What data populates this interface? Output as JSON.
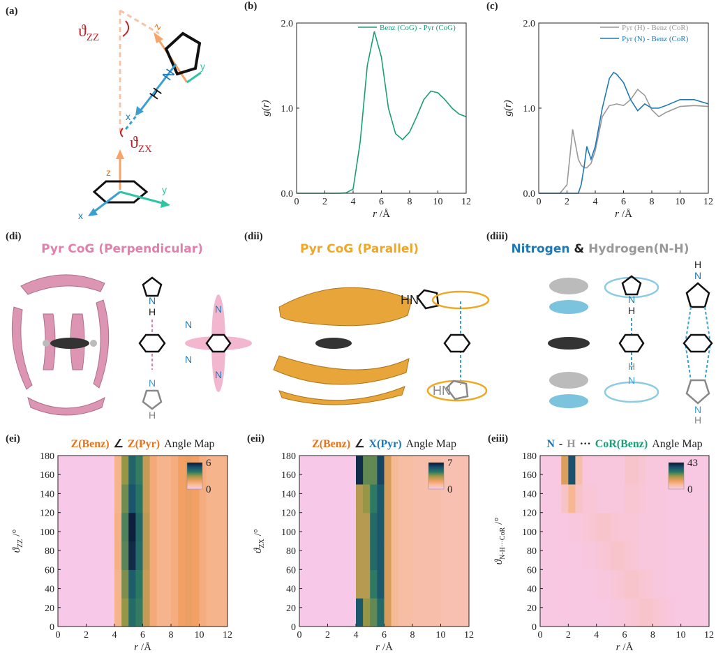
{
  "chart_data": [
    {
      "type": "line",
      "panel_label": "(b)",
      "x_label_var": "r",
      "x_label_unit": "/Å",
      "y_label": "g(r)",
      "legend": "upper right",
      "x": [
        0,
        1,
        2,
        3,
        3.5,
        4,
        4.5,
        5,
        5.5,
        6,
        6.5,
        7,
        7.5,
        8,
        8.5,
        9,
        9.5,
        10,
        10.5,
        11,
        11.5,
        12
      ],
      "series": [
        {
          "name": "Benz (CoG) - Pyr (CoG)",
          "color": "#1a9e77",
          "values": [
            0,
            0,
            0,
            0,
            0.005,
            0.05,
            0.6,
            1.5,
            1.9,
            1.6,
            1.0,
            0.7,
            0.63,
            0.72,
            0.9,
            1.1,
            1.2,
            1.18,
            1.1,
            1.0,
            0.93,
            0.9
          ]
        }
      ],
      "xlim": [
        0,
        12
      ],
      "xticks": [
        0,
        2,
        4,
        6,
        8,
        10,
        12
      ],
      "ylim": [
        0,
        2
      ],
      "yticks": [
        {
          "value": 0,
          "label": "0.0"
        },
        {
          "value": 1,
          "label": "1.0"
        },
        {
          "value": 2,
          "label": "2.0"
        }
      ]
    },
    {
      "type": "line",
      "panel_label": "(c)",
      "x_label_var": "r",
      "x_label_unit": "/Å",
      "y_label": "g(r)",
      "legend": "upper right",
      "x": [
        0,
        1,
        1.5,
        2,
        2.4,
        2.8,
        3,
        3.2,
        3.4,
        3.7,
        4,
        4.5,
        5,
        5.3,
        5.5,
        6,
        6.5,
        7,
        7.5,
        8,
        8.5,
        9,
        10,
        11,
        12
      ],
      "series": [
        {
          "name": "Pyr (H) - Benz (CoR)",
          "color": "#999999",
          "values": [
            0,
            0,
            0,
            0.1,
            0.75,
            0.4,
            0.33,
            0.3,
            0.3,
            0.35,
            0.5,
            0.9,
            1.03,
            1.04,
            1.05,
            1.03,
            1.1,
            1.22,
            1.15,
            0.98,
            0.9,
            0.95,
            1.02,
            1.03,
            1.02
          ]
        },
        {
          "name": "Pyr (N) - Benz (CoR)",
          "color": "#1f78b4",
          "values": [
            0,
            0,
            0,
            0,
            0,
            0,
            0.1,
            0.3,
            0.55,
            0.4,
            0.55,
            1.0,
            1.35,
            1.42,
            1.4,
            1.3,
            1.1,
            0.97,
            1.05,
            1.0,
            1.0,
            1.03,
            1.1,
            1.1,
            1.05
          ]
        }
      ],
      "xlim": [
        0,
        12
      ],
      "xticks": [
        0,
        2,
        4,
        6,
        8,
        10,
        12
      ],
      "ylim": [
        0,
        2
      ],
      "yticks": [
        {
          "value": 0,
          "label": "0.0"
        },
        {
          "value": 1,
          "label": "1.0"
        },
        {
          "value": 2,
          "label": "2.0"
        }
      ]
    },
    {
      "type": "heatmap",
      "panel_label": "(ei)",
      "x_label_var": "r",
      "x_label_unit": "/Å",
      "title_parts": [
        {
          "text": "Z(Benz)",
          "color": "#e8731c"
        },
        {
          "text": "∠",
          "color": "#222222"
        },
        {
          "text": "Z(Pyr)",
          "color": "#e8731c"
        },
        {
          "text": "Angle Map",
          "color": "#222222"
        }
      ],
      "y_label": {
        "symbol": "ϑ",
        "sub": "ZZ",
        "unit": "/°"
      },
      "x": [
        0.25,
        0.75,
        1.25,
        1.75,
        2.25,
        2.75,
        3.25,
        3.75,
        4.25,
        4.75,
        5.25,
        5.75,
        6.25,
        6.75,
        7.25,
        7.75,
        8.25,
        8.75,
        9.25,
        9.75,
        10.25,
        10.75,
        11.25,
        11.75
      ],
      "y": [
        15,
        45,
        75,
        105,
        135,
        165
      ],
      "z": [
        [
          0,
          0,
          0,
          0,
          0,
          0,
          0,
          0,
          1.2,
          3.0,
          4.2,
          3.8,
          2.4,
          1.5,
          1.2,
          1.2,
          1.4,
          1.8,
          1.9,
          1.8,
          1.4,
          1.2,
          1.2,
          1.2
        ],
        [
          0,
          0,
          0,
          0,
          0,
          0,
          0,
          0,
          1.2,
          3.2,
          4.6,
          3.9,
          2.4,
          1.5,
          1.2,
          1.2,
          1.4,
          1.8,
          1.9,
          1.8,
          1.4,
          1.2,
          1.2,
          1.2
        ],
        [
          0,
          0,
          0,
          0,
          0,
          0,
          0,
          0,
          1.3,
          3.5,
          5.6,
          4.2,
          2.5,
          1.5,
          1.2,
          1.2,
          1.4,
          1.8,
          1.9,
          1.8,
          1.4,
          1.2,
          1.2,
          1.2
        ],
        [
          0,
          0,
          0,
          0,
          0,
          0,
          0,
          0,
          1.3,
          3.6,
          5.8,
          4.3,
          2.5,
          1.5,
          1.2,
          1.2,
          1.4,
          1.8,
          1.9,
          1.8,
          1.4,
          1.2,
          1.2,
          1.2
        ],
        [
          0,
          0,
          0,
          0,
          0,
          0,
          0,
          0,
          1.2,
          3.3,
          4.8,
          4.0,
          2.4,
          1.5,
          1.2,
          1.2,
          1.4,
          1.8,
          1.9,
          1.8,
          1.4,
          1.2,
          1.2,
          1.2
        ],
        [
          0,
          0,
          0,
          0,
          0,
          0,
          0,
          0,
          1.2,
          3.0,
          4.4,
          3.8,
          2.4,
          1.5,
          1.2,
          1.2,
          1.4,
          1.8,
          1.9,
          1.8,
          1.4,
          1.2,
          1.2,
          1.2
        ]
      ],
      "zlim": [
        0,
        6
      ],
      "colorbar_ticks": [
        0,
        6
      ],
      "xlim": [
        0,
        12
      ],
      "xticks": [
        0,
        2,
        4,
        6,
        8,
        10,
        12
      ],
      "ylim": [
        0,
        180
      ],
      "yticks": [
        0,
        20,
        40,
        60,
        80,
        100,
        120,
        140,
        160,
        180
      ]
    },
    {
      "type": "heatmap",
      "panel_label": "(eii)",
      "x_label_var": "r",
      "x_label_unit": "/Å",
      "title_parts": [
        {
          "text": "Z(Benz)",
          "color": "#e8731c"
        },
        {
          "text": "∠",
          "color": "#222222"
        },
        {
          "text": "X(Pyr)",
          "color": "#1f78b4"
        },
        {
          "text": "Angle Map",
          "color": "#222222"
        }
      ],
      "y_label": {
        "symbol": "ϑ",
        "sub": "ZX",
        "unit": "/°"
      },
      "x": [
        0.25,
        0.75,
        1.25,
        1.75,
        2.25,
        2.75,
        3.25,
        3.75,
        4.25,
        4.75,
        5.25,
        5.75,
        6.25,
        6.75,
        7.25,
        7.75,
        8.25,
        8.75,
        9.25,
        9.75,
        10.25,
        10.75,
        11.25,
        11.75
      ],
      "y": [
        15,
        45,
        75,
        105,
        135,
        165
      ],
      "z": [
        [
          0,
          0,
          0,
          0,
          0,
          0,
          0,
          0,
          5.5,
          3.5,
          4.0,
          5.0,
          2.5,
          1.2,
          1.0,
          1.0,
          0.9,
          0.9,
          0.9,
          0.9,
          0.8,
          0.8,
          0.8,
          0.8
        ],
        [
          0,
          0,
          0,
          0,
          0,
          0,
          0,
          0,
          3.0,
          3.0,
          4.5,
          5.5,
          2.5,
          1.2,
          1.0,
          1.0,
          0.9,
          0.9,
          0.9,
          0.9,
          0.8,
          0.8,
          0.8,
          0.8
        ],
        [
          0,
          0,
          0,
          0,
          0,
          0,
          0,
          0,
          3.0,
          3.0,
          5.0,
          5.5,
          2.5,
          1.2,
          1.0,
          1.0,
          0.9,
          0.9,
          0.9,
          0.9,
          0.8,
          0.8,
          0.8,
          0.8
        ],
        [
          0,
          0,
          0,
          0,
          0,
          0,
          0,
          0,
          3.0,
          3.0,
          5.0,
          5.5,
          2.5,
          1.2,
          1.0,
          1.0,
          0.9,
          0.9,
          0.9,
          0.9,
          0.8,
          0.8,
          0.8,
          0.8
        ],
        [
          0,
          0,
          0,
          0,
          0,
          0,
          0,
          0,
          3.0,
          3.5,
          4.5,
          5.5,
          2.5,
          1.2,
          1.0,
          1.0,
          0.9,
          0.9,
          0.9,
          0.9,
          0.8,
          0.8,
          0.8,
          0.8
        ],
        [
          0,
          0,
          0,
          0,
          0,
          0,
          0,
          0,
          6.5,
          4.0,
          4.0,
          6.0,
          2.5,
          1.2,
          1.0,
          1.0,
          0.9,
          0.9,
          0.9,
          0.9,
          0.8,
          0.8,
          0.8,
          0.8
        ]
      ],
      "zlim": [
        0,
        7
      ],
      "colorbar_ticks": [
        0,
        7
      ],
      "xlim": [
        0,
        12
      ],
      "xticks": [
        0,
        2,
        4,
        6,
        8,
        10,
        12
      ],
      "ylim": [
        0,
        180
      ],
      "yticks": [
        0,
        20,
        40,
        60,
        80,
        100,
        120,
        140,
        160,
        180
      ]
    },
    {
      "type": "heatmap",
      "panel_label": "(eiii)",
      "x_label_var": "r",
      "x_label_unit": "/Å",
      "title_parts": [
        {
          "text": "N",
          "color": "#1f78b4"
        },
        {
          "text": "-",
          "color": "#222222"
        },
        {
          "text": "H",
          "color": "#999999"
        },
        {
          "text": "···",
          "color": "#222222"
        },
        {
          "text": "CoR(Benz)",
          "color": "#1a9e77"
        },
        {
          "text": "Angle Map",
          "color": "#222222"
        }
      ],
      "y_label": {
        "symbol": "ϑ",
        "sub": "N-H···CoR",
        "unit": "/°"
      },
      "x": [
        0.25,
        0.75,
        1.25,
        1.75,
        2.25,
        2.75,
        3.25,
        3.75,
        4.25,
        4.75,
        5.25,
        5.75,
        6.25,
        6.75,
        7.25,
        7.75,
        8.25,
        8.75,
        9.25,
        9.75,
        10.25,
        10.75,
        11.25,
        11.75
      ],
      "y": [
        15,
        45,
        75,
        105,
        135,
        165
      ],
      "z": [
        [
          0.5,
          0.5,
          0.5,
          0.5,
          0.5,
          0.5,
          0.5,
          0.5,
          0.5,
          0.5,
          1,
          1,
          1.5,
          2,
          2.5,
          2.5,
          2,
          1.5,
          1,
          0.5,
          0.5,
          0.5,
          0.5,
          0.5
        ],
        [
          0.5,
          0.5,
          0.5,
          0.5,
          0.5,
          0.5,
          0.5,
          0.5,
          1,
          1,
          1.5,
          2,
          2.5,
          2.5,
          2,
          1.5,
          1,
          1,
          0.5,
          0.5,
          0.5,
          0.5,
          0.5,
          0.5
        ],
        [
          0.5,
          0.5,
          0.5,
          0.5,
          0.5,
          0.5,
          1,
          1,
          1.5,
          2,
          2.5,
          2.5,
          2,
          1.5,
          1,
          1,
          1,
          1,
          0.5,
          0.5,
          0.5,
          0.5,
          0.5,
          0.5
        ],
        [
          0.5,
          0.5,
          0.5,
          0.5,
          1,
          1,
          1.5,
          2,
          2.5,
          2.5,
          2,
          1.5,
          1.5,
          1.5,
          1,
          1,
          1,
          1,
          0.5,
          0.5,
          0.5,
          0.5,
          0.5,
          0.5
        ],
        [
          0.5,
          0.5,
          0.5,
          3,
          8,
          3,
          1.5,
          1.5,
          1,
          1,
          1,
          1,
          2,
          2,
          1.5,
          1,
          1,
          1,
          0.5,
          0.5,
          0.5,
          0.5,
          0.5,
          0.5
        ],
        [
          0.5,
          0.5,
          0.5,
          15,
          35,
          6,
          1,
          1,
          1,
          1,
          1,
          1,
          2.5,
          2.5,
          2,
          1,
          1,
          1,
          1,
          0.5,
          0.5,
          0.5,
          0.5,
          0.5
        ]
      ],
      "zlim": [
        0,
        43
      ],
      "colorbar_ticks": [
        0,
        43
      ],
      "xlim": [
        0,
        12
      ],
      "xticks": [
        0,
        2,
        4,
        6,
        8,
        10,
        12
      ],
      "ylim": [
        0,
        180
      ],
      "yticks": [
        0,
        20,
        40,
        60,
        80,
        100,
        120,
        140,
        160,
        180
      ]
    }
  ],
  "figure": {
    "panel_a": {
      "label": "(a)",
      "theta_zz": {
        "symbol": "ϑ",
        "sub": "ZZ"
      },
      "theta_zx": {
        "symbol": "ϑ",
        "sub": "ZX"
      },
      "pyr_axes": [
        "z",
        "y",
        "x"
      ],
      "pyr_atoms": [
        "H",
        "N"
      ],
      "benz_axes": [
        "z",
        "y",
        "x"
      ]
    },
    "panel_di": {
      "label": "(di)",
      "title": "Pyr CoG (Perpendicular)",
      "atoms": [
        "N",
        "H",
        "N",
        "H",
        "N",
        "N",
        "N",
        "N"
      ]
    },
    "panel_dii": {
      "label": "(dii)",
      "title": "Pyr CoG (Parallel)",
      "atoms": [
        "HN",
        "HN"
      ]
    },
    "panel_diii": {
      "label": "(diii)",
      "title_parts": [
        "Nitrogen",
        "&",
        "Hydrogen(N-H)"
      ],
      "atoms": [
        "N",
        "H",
        "H",
        "N",
        "H",
        "N",
        "N",
        "H"
      ]
    }
  }
}
